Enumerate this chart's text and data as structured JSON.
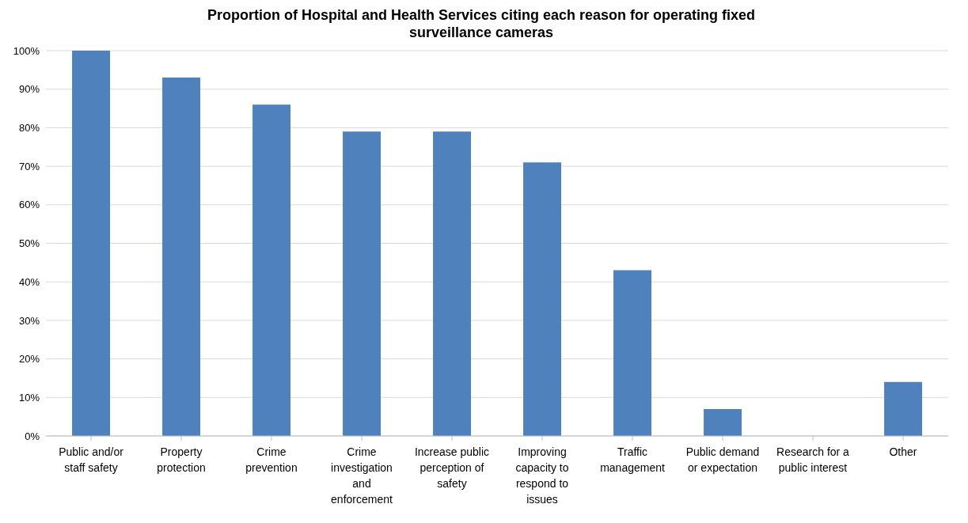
{
  "chart_data": {
    "type": "bar",
    "title": "Proportion of Hospital and Health Services citing each reason for operating fixed surveillance cameras",
    "categories": [
      "Public and/or staff safety",
      "Property protection",
      "Crime prevention",
      "Crime investigation and enforcement",
      "Increase public perception of safety",
      "Improving capacity to respond to issues",
      "Traffic management",
      "Public demand or expectation",
      "Research for a public interest",
      "Other"
    ],
    "values": [
      100,
      93,
      86,
      79,
      79,
      71,
      43,
      7,
      0,
      14
    ],
    "color": "#4f81bd",
    "ylim": [
      0,
      100
    ],
    "yticks": [
      {
        "value": 0,
        "label": "0%"
      },
      {
        "value": 10,
        "label": "10%"
      },
      {
        "value": 20,
        "label": "20%"
      },
      {
        "value": 30,
        "label": "30%"
      },
      {
        "value": 40,
        "label": "40%"
      },
      {
        "value": 50,
        "label": "50%"
      },
      {
        "value": 60,
        "label": "60%"
      },
      {
        "value": 70,
        "label": "70%"
      },
      {
        "value": 80,
        "label": "80%"
      },
      {
        "value": 90,
        "label": "90%"
      },
      {
        "value": 100,
        "label": "100%"
      }
    ],
    "grid": "y",
    "legend": false
  }
}
